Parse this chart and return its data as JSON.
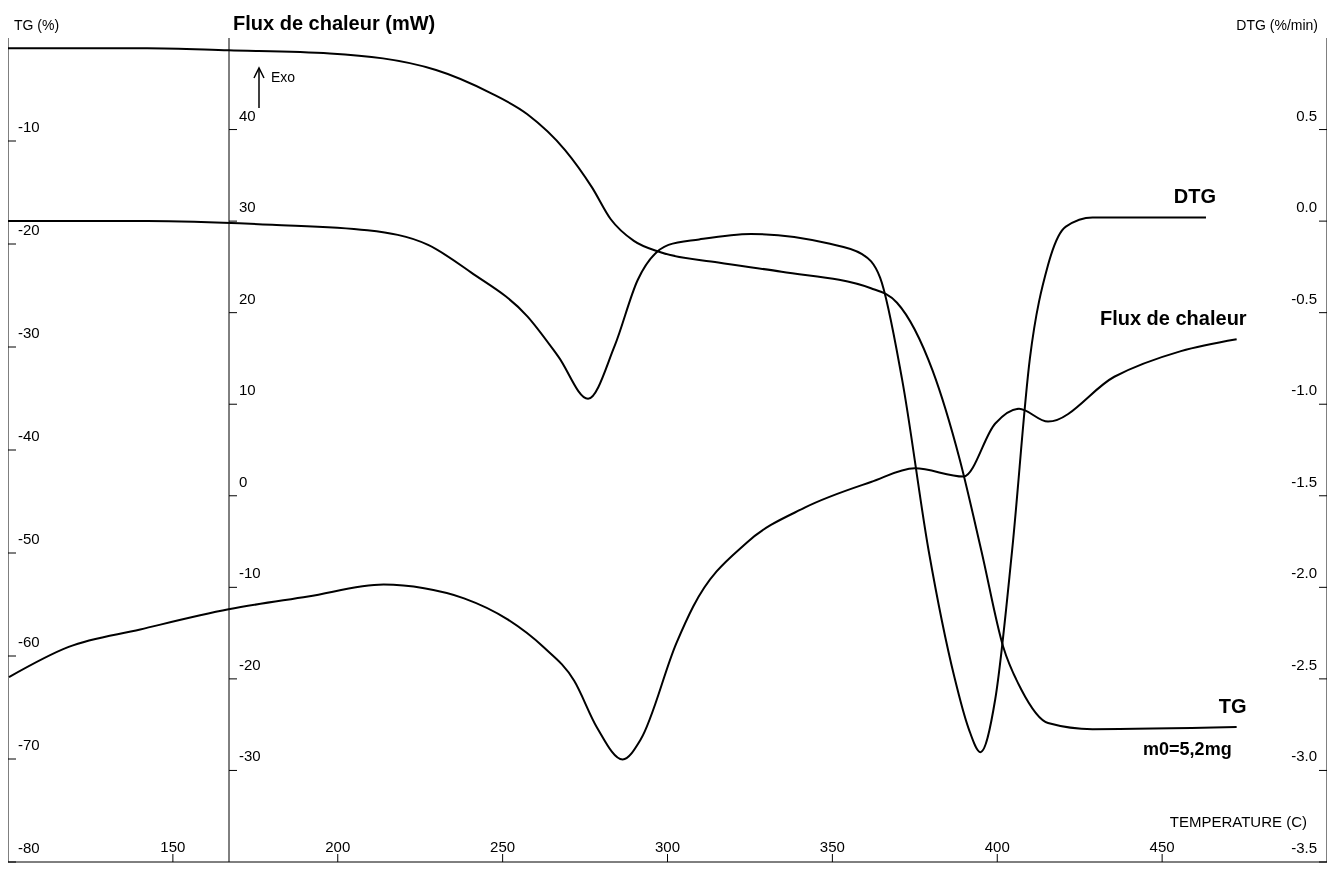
{
  "chart_data": {
    "type": "line",
    "xlabel": "TEMPERATURE (C)",
    "ylabel": "TG (%)",
    "y2label": "DTG (%/min)",
    "y3label": "Flux de chaleur (mW)",
    "xlim": [
      100,
      500
    ],
    "xticks": [
      150,
      200,
      250,
      300,
      350,
      400,
      450
    ],
    "ylim": [
      -80,
      0
    ],
    "yticks": [
      -80,
      -70,
      -60,
      -50,
      -40,
      -30,
      -20,
      -10
    ],
    "y2lim": [
      -3.5,
      1.0
    ],
    "y2ticks": [
      -3.5,
      {
        "value": -3,
        "label": "-3.0"
      },
      -2.5,
      {
        "value": -2,
        "label": "-2.0"
      },
      -1.5,
      {
        "value": -1,
        "label": "-1.0"
      },
      -0.5,
      {
        "value": 0,
        "label": "0.0"
      },
      0.5
    ],
    "y3lim": [
      -40,
      50
    ],
    "y3ticks": [
      -30,
      -20,
      -10,
      0,
      10,
      20,
      30,
      40
    ],
    "annotations": [
      "Exo",
      {
        "text": "m0=5,2mg",
        "x": 472.6,
        "y": -66.9
      }
    ],
    "series": [
      {
        "name": "TG",
        "color": "#000000",
        "axis": "y",
        "x": [
          100,
          142.2,
          166.9,
          197.6,
          229.8,
          246.1,
          257.5,
          269.0,
          277.1,
          282.8,
          289.8,
          297.9,
          315.4,
          334.6,
          361.7,
          369.6,
          380.4,
          388.6,
          395.2,
          401.8,
          407.2,
          415.4,
          428.9,
          472.6
        ],
        "values": [
          -1.0,
          -1.0,
          -1.2,
          -1.5,
          -3.1,
          -5.3,
          -7.4,
          -10.9,
          -14.5,
          -17.6,
          -19.7,
          -20.8,
          -21.8,
          -22.7,
          -24.3,
          -25.7,
          -32.3,
          -40.9,
          -49.8,
          -59.1,
          -63.2,
          -66.5,
          -67.1,
          -66.9
        ]
      },
      {
        "name": "DTG",
        "color": "#000000",
        "axis": "y2",
        "x": [
          100,
          142.2,
          180.1,
          209.0,
          227.4,
          240.4,
          257.5,
          266.9,
          275.9,
          284.0,
          291.0,
          300.3,
          309.6,
          325.3,
          348.2,
          359.0,
          364.5,
          371.1,
          379.2,
          387.0,
          391.3,
          394.9,
          399.4,
          404.5,
          409.9,
          415.4,
          420.8,
          428.9,
          463.3
        ],
        "values": [
          0.0,
          0.0,
          -0.02,
          -0.05,
          -0.13,
          -0.28,
          -0.52,
          -0.74,
          -0.97,
          -0.68,
          -0.32,
          -0.13,
          -0.1,
          -0.07,
          -0.12,
          -0.18,
          -0.31,
          -0.86,
          -1.8,
          -2.49,
          -2.77,
          -2.9,
          -2.61,
          -1.8,
          -0.75,
          -0.24,
          -0.03,
          0.02,
          0.02
        ]
      },
      {
        "name": "Flux de chaleur",
        "color": "#000000",
        "axis": "y3",
        "x": [
          100.3,
          118.4,
          140.1,
          166.9,
          191.0,
          213.9,
          226.2,
          238.3,
          251.5,
          262.3,
          271.7,
          278.6,
          286.4,
          291.9,
          302.7,
          307.8,
          324.1,
          341.6,
          361.7,
          375.0,
          389.8,
          399.4,
          406.6,
          415.4,
          435.5,
          455.7,
          472.6
        ],
        "values": [
          -19.8,
          -16.5,
          -14.6,
          -12.4,
          -11.0,
          -9.7,
          -10.1,
          -11.2,
          -13.5,
          -16.5,
          -20.2,
          -25.3,
          -28.8,
          -26.6,
          -16.1,
          -12.1,
          -5.1,
          -1.3,
          1.5,
          3.0,
          2.1,
          7.9,
          9.5,
          8.1,
          13.0,
          15.8,
          17.1
        ]
      }
    ]
  }
}
